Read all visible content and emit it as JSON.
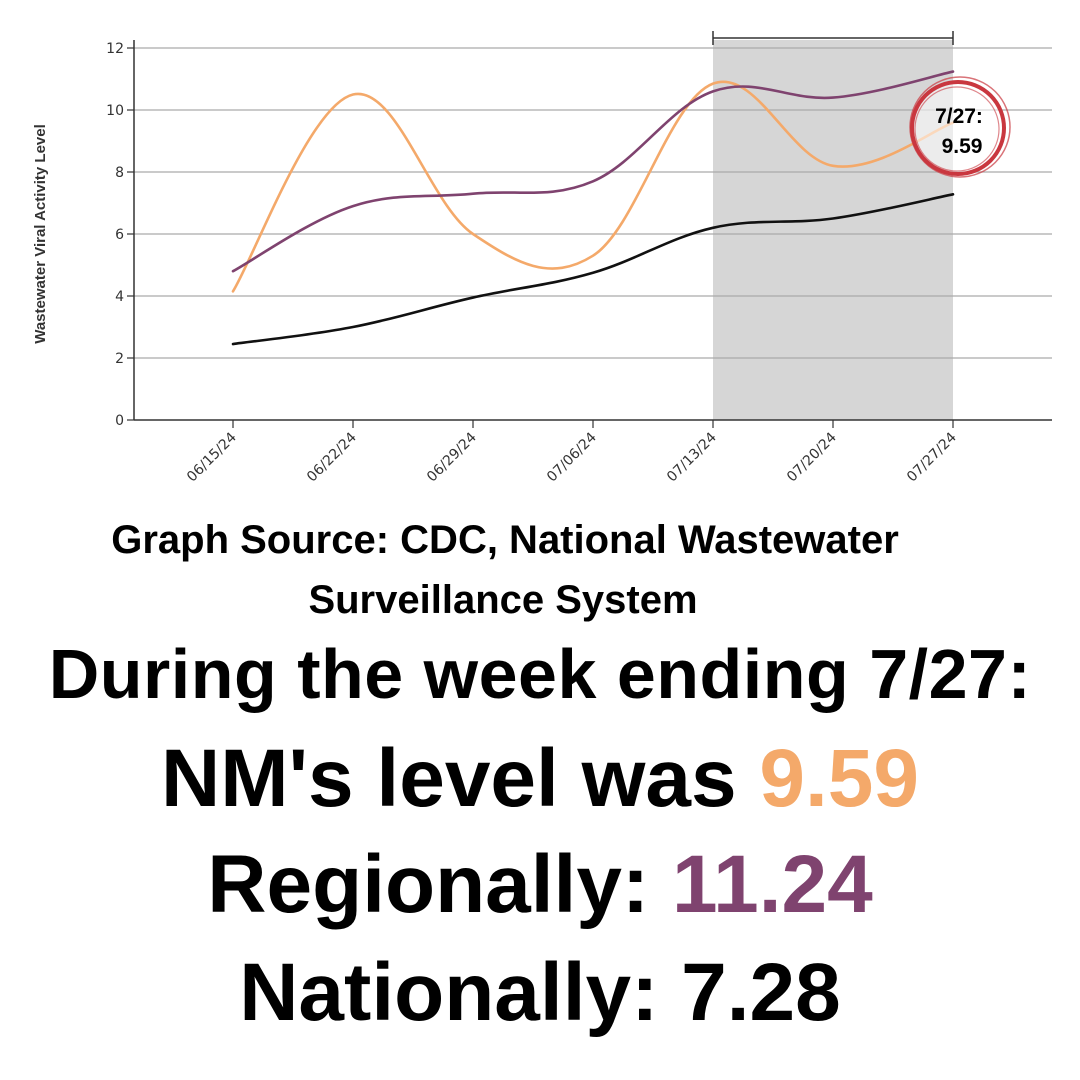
{
  "chart_data": {
    "type": "line",
    "title": "",
    "xlabel": "",
    "ylabel": "Wastewater Viral Activity Level",
    "ylim": [
      0,
      12
    ],
    "yticks": [
      0,
      2,
      4,
      6,
      8,
      10,
      12
    ],
    "grid": true,
    "x": [
      "06/15/24",
      "06/22/24",
      "06/29/24",
      "07/06/24",
      "07/13/24",
      "07/20/24",
      "07/27/24"
    ],
    "series": [
      {
        "color": "#f4a96a",
        "values": [
          4.15,
          10.5,
          6.0,
          5.3,
          10.85,
          8.2,
          9.59
        ]
      },
      {
        "color": "#7f436f",
        "values": [
          4.8,
          6.9,
          7.3,
          7.7,
          10.6,
          10.4,
          11.24
        ]
      },
      {
        "color": "#111111",
        "values": [
          2.45,
          3.0,
          3.95,
          4.75,
          6.2,
          6.5,
          7.28
        ]
      }
    ],
    "highlight_range": [
      "07/13/24",
      "07/27/24"
    ],
    "annotation": {
      "line1": "7/27:",
      "line2": "9.59",
      "circle_color": "#c9373f"
    }
  },
  "caption": {
    "source_line1": "Graph Source: CDC, National Wastewater",
    "source_line2": "Surveillance System",
    "headline": "During the week ending 7/27:",
    "nm_label": "NM's level was ",
    "nm_value": "9.59",
    "regional_label": "Regionally: ",
    "regional_value": "11.24",
    "national_label": "Nationally: ",
    "national_value": "7.28"
  },
  "colors": {
    "nm": "#f4a96a",
    "regional": "#7f436f",
    "national": "#000000"
  }
}
